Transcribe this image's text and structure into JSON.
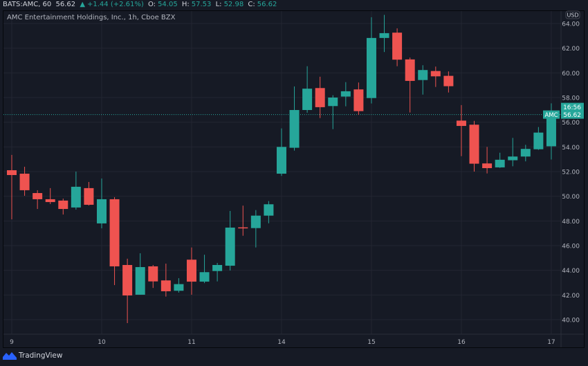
{
  "header": {
    "symbol": "BATS:AMC, 60",
    "last": "56.62",
    "change": "+1.44 (+2.61%)",
    "open_label": "O:",
    "open": "54.05",
    "high_label": "H:",
    "high": "57.53",
    "low_label": "L:",
    "low": "52.98",
    "close_label": "C:",
    "close": "56.62"
  },
  "legend": "AMC Entertainment Holdings, Inc., 1h, Cboe BZX",
  "price_axis": {
    "currency": "USD",
    "ticks": [
      "40.00",
      "42.00",
      "44.00",
      "46.00",
      "48.00",
      "50.00",
      "52.00",
      "54.00",
      "56.00",
      "58.00",
      "60.00",
      "62.00",
      "64.00"
    ],
    "range": [
      40,
      64
    ],
    "last_price": 56.62,
    "last_price_label": "56.62",
    "countdown": "16:56",
    "symbol_tag": "AMC"
  },
  "time_axis": {
    "labels": [
      "9",
      "10",
      "11",
      "14",
      "15",
      "16",
      "17"
    ],
    "candles_per_day": 7
  },
  "colors": {
    "up": "#26a69a",
    "down": "#ef5350",
    "grid": "#232632",
    "bg": "#161a25",
    "text": "#b2b5be",
    "brand": "#2962ff"
  },
  "branding": "TradingView",
  "chart_data": {
    "type": "candlestick",
    "interval": "1h",
    "ohlc": [
      [
        52.11,
        53.35,
        48.13,
        51.72
      ],
      [
        51.83,
        52.39,
        50.04,
        50.49
      ],
      [
        50.26,
        50.49,
        48.97,
        49.76
      ],
      [
        49.76,
        50.66,
        49.37,
        49.53
      ],
      [
        49.65,
        49.81,
        48.52,
        48.97
      ],
      [
        49.09,
        52.0,
        48.92,
        50.77
      ],
      [
        50.66,
        51.16,
        49.25,
        49.31
      ],
      [
        47.8,
        51.44,
        47.4,
        49.76
      ],
      [
        49.76,
        49.93,
        42.8,
        44.32
      ],
      [
        44.43,
        44.94,
        39.72,
        41.96
      ],
      [
        42.02,
        45.38,
        42.02,
        44.26
      ],
      [
        44.32,
        44.43,
        42.57,
        43.1
      ],
      [
        43.18,
        44.54,
        41.87,
        42.3
      ],
      [
        42.34,
        43.36,
        42.19,
        42.88
      ],
      [
        44.86,
        45.85,
        42.02,
        43.08
      ],
      [
        43.08,
        45.26,
        42.96,
        43.85
      ],
      [
        43.94,
        44.6,
        43.1,
        44.43
      ],
      [
        44.37,
        48.81,
        43.98,
        47.46
      ],
      [
        47.48,
        49.24,
        46.8,
        47.42
      ],
      [
        47.42,
        48.88,
        45.85,
        48.43
      ],
      [
        48.43,
        49.61,
        47.81,
        49.35
      ],
      [
        51.83,
        55.5,
        51.65,
        54.0
      ],
      [
        53.93,
        58.9,
        53.7,
        56.99
      ],
      [
        56.99,
        60.54,
        56.77,
        58.72
      ],
      [
        58.77,
        59.69,
        56.34,
        57.22
      ],
      [
        57.31,
        58.19,
        55.44,
        58.0
      ],
      [
        58.08,
        59.25,
        57.29,
        58.51
      ],
      [
        58.66,
        59.22,
        56.6,
        56.9
      ],
      [
        57.96,
        64.51,
        57.52,
        62.83
      ],
      [
        62.83,
        64.7,
        61.69,
        63.22
      ],
      [
        63.26,
        63.61,
        60.54,
        61.07
      ],
      [
        61.09,
        61.24,
        56.79,
        59.35
      ],
      [
        59.42,
        60.62,
        58.24,
        60.23
      ],
      [
        60.15,
        60.51,
        58.86,
        59.72
      ],
      [
        59.76,
        60.12,
        58.41,
        58.92
      ],
      [
        56.13,
        57.39,
        53.25,
        55.7
      ],
      [
        55.8,
        56.11,
        52.0,
        52.64
      ],
      [
        52.66,
        54.0,
        51.85,
        52.28
      ],
      [
        52.34,
        53.53,
        52.3,
        52.96
      ],
      [
        52.92,
        54.73,
        52.43,
        53.22
      ],
      [
        53.22,
        54.17,
        52.83,
        53.84
      ],
      [
        53.81,
        55.61,
        53.76,
        55.16
      ],
      [
        54.05,
        57.53,
        52.98,
        56.62
      ]
    ]
  }
}
